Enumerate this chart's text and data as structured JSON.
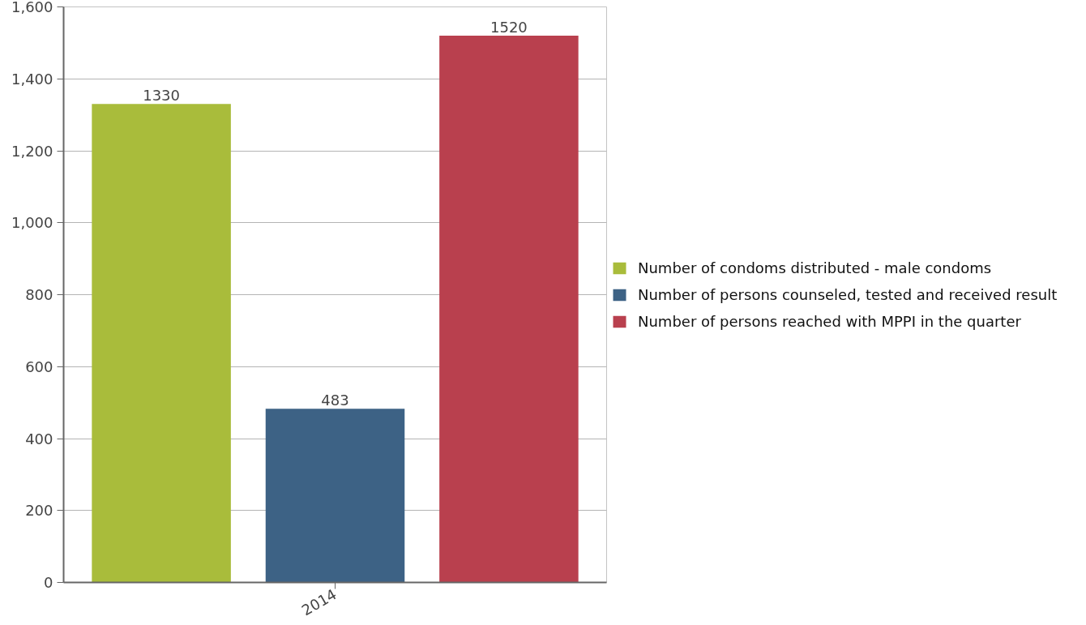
{
  "chart_data": {
    "type": "bar",
    "categories": [
      "2014"
    ],
    "series": [
      {
        "name": "Number of condoms distributed - male condoms",
        "color": "#a9bc3b",
        "values": [
          1330
        ]
      },
      {
        "name": "Number of persons counseled, tested and received result",
        "color": "#3d6285",
        "values": [
          483
        ]
      },
      {
        "name": "Number of persons reached with MPPI in the quarter",
        "color": "#b9404e",
        "values": [
          1520
        ]
      }
    ],
    "ylim": [
      0,
      1600
    ],
    "yticks": [
      0,
      200,
      400,
      600,
      800,
      {
        "value": 1000,
        "label": "1,000"
      },
      {
        "value": 1200,
        "label": "1,200"
      },
      {
        "value": 1400,
        "label": "1,400"
      },
      {
        "value": 1600,
        "label": "1,600"
      }
    ],
    "grid": "y",
    "legend": "right",
    "data_labels": true
  }
}
